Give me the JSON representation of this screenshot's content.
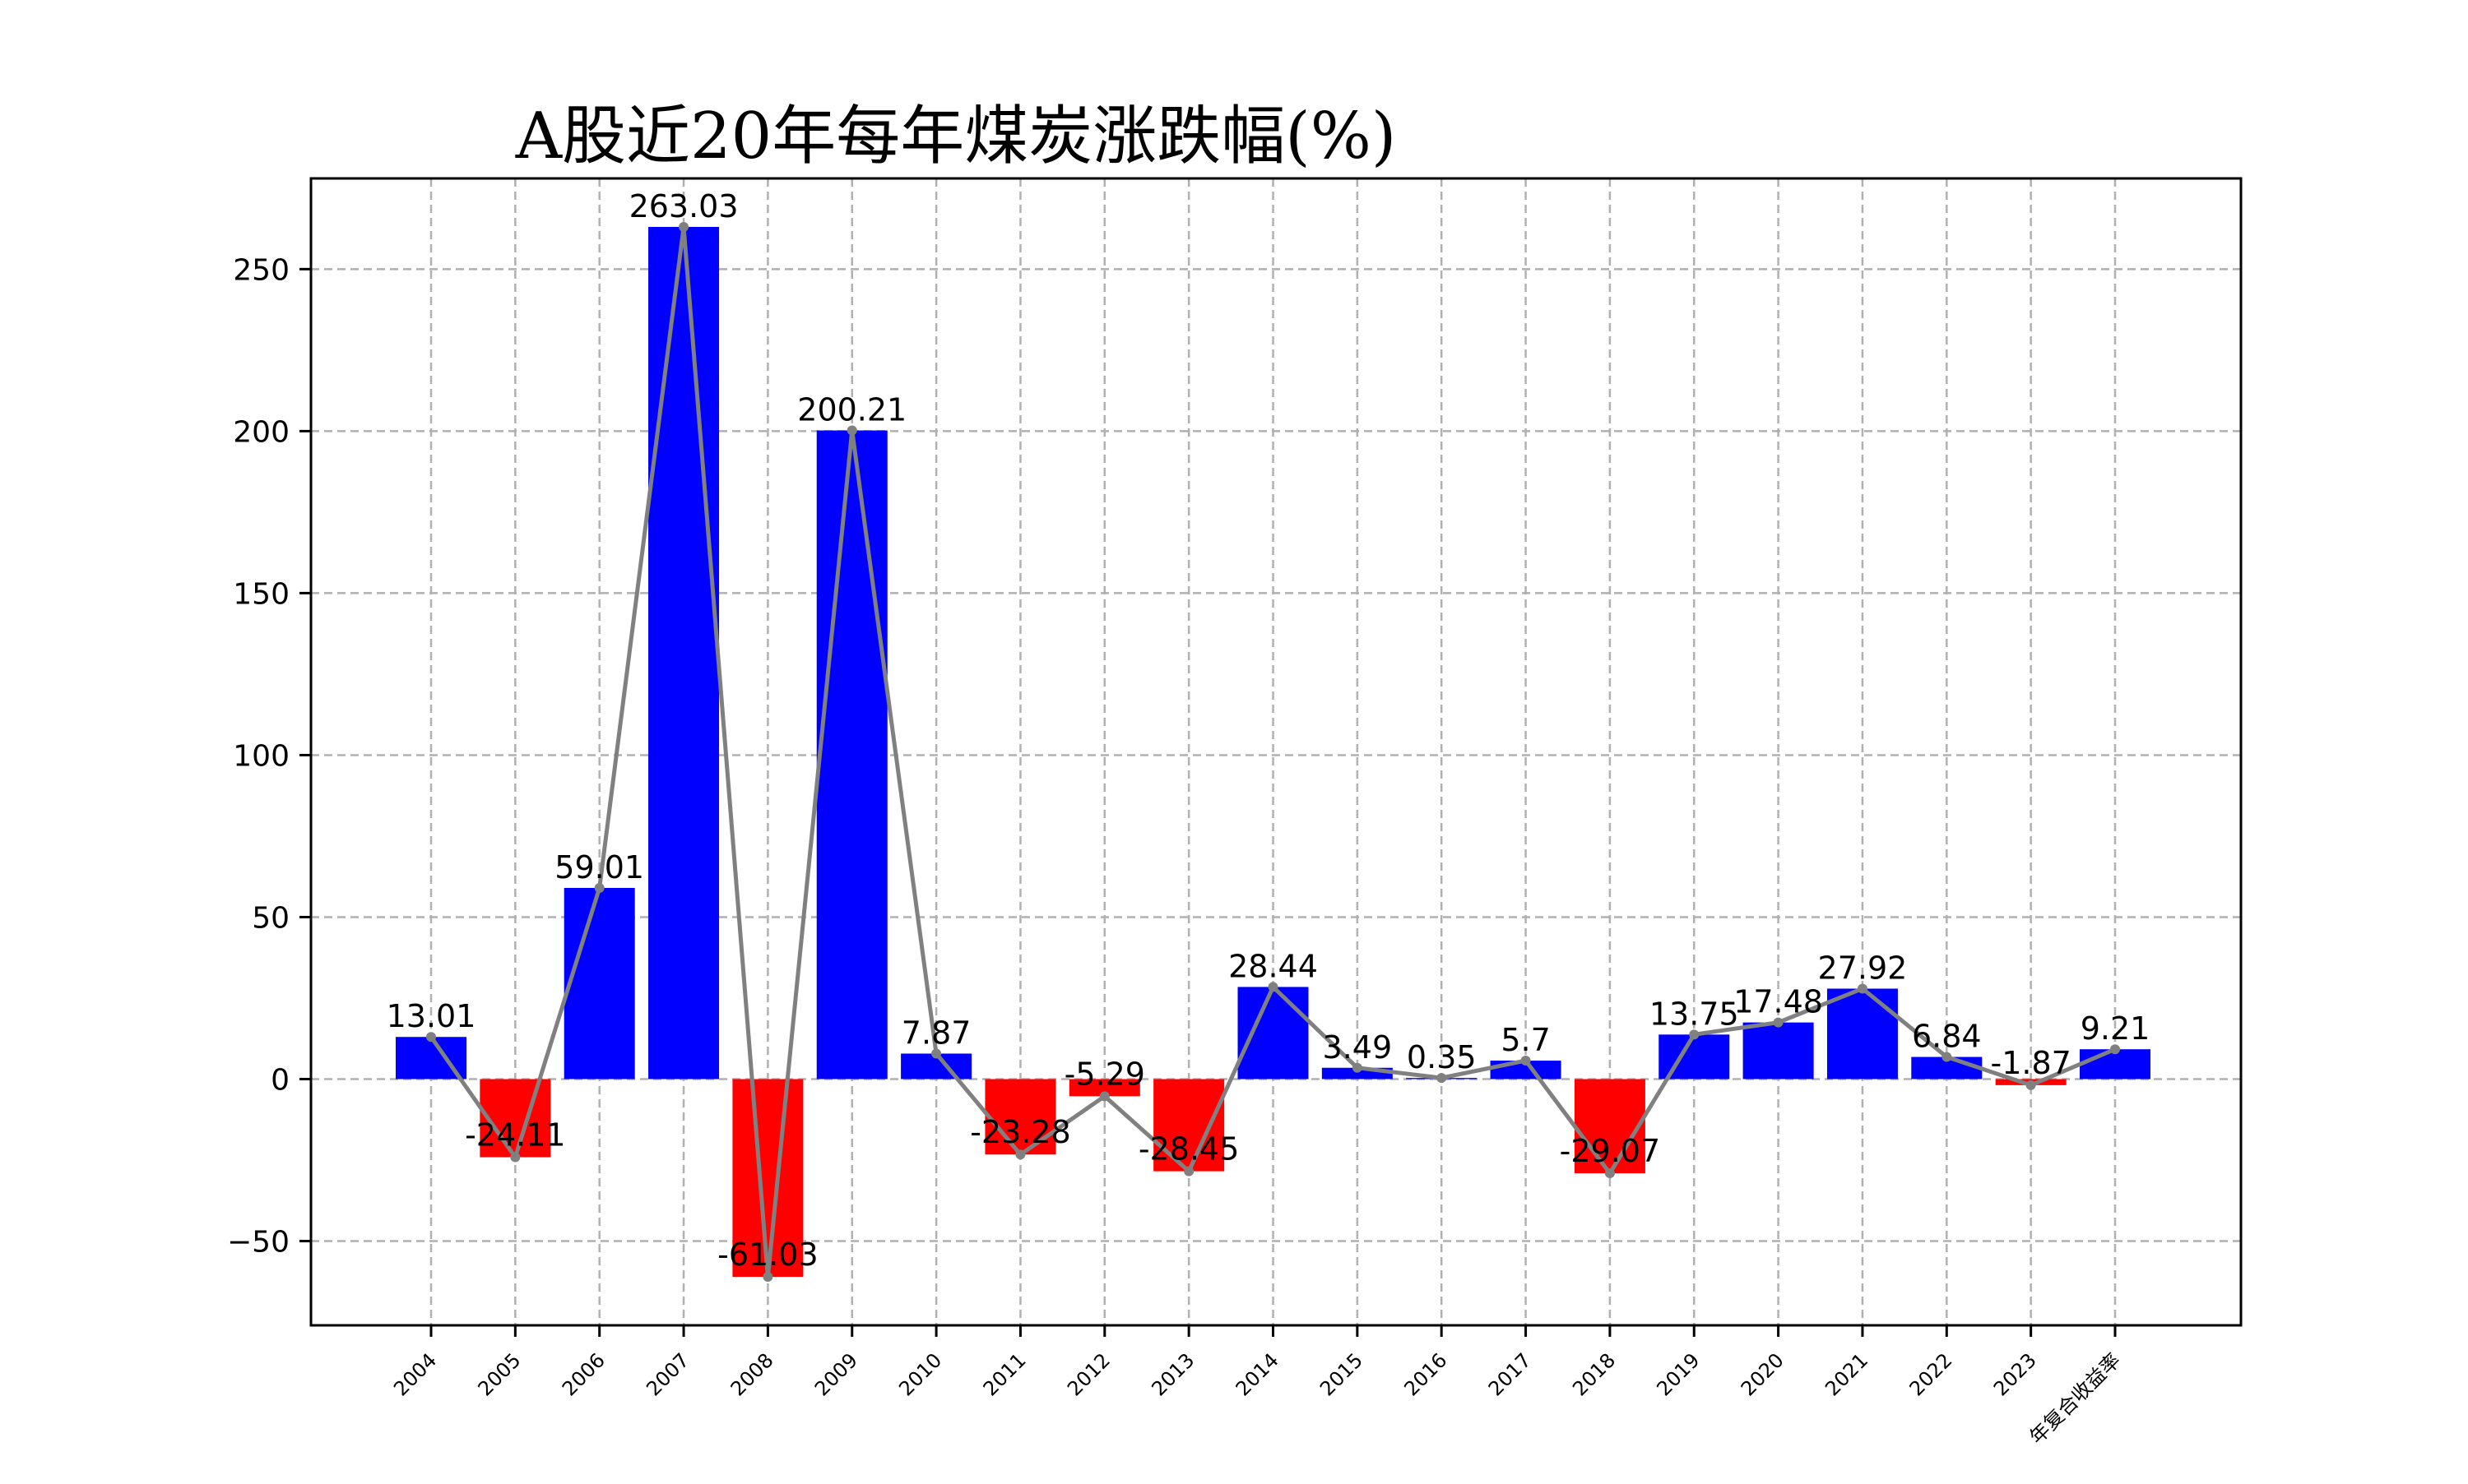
{
  "chart_data": {
    "type": "bar",
    "title": "A股近20年每年煤炭涨跌幅(%)",
    "xlabel": "",
    "ylabel": "",
    "categories": [
      "2004",
      "2005",
      "2006",
      "2007",
      "2008",
      "2009",
      "2010",
      "2011",
      "2012",
      "2013",
      "2014",
      "2015",
      "2016",
      "2017",
      "2018",
      "2019",
      "2020",
      "2021",
      "2022",
      "2023",
      "年复合收益率"
    ],
    "values": [
      13.01,
      -24.11,
      59.01,
      263.03,
      -61.03,
      200.21,
      7.87,
      -23.28,
      -5.29,
      -28.45,
      28.44,
      3.49,
      0.35,
      5.7,
      -29.07,
      13.75,
      17.48,
      27.92,
      6.84,
      -1.87,
      9.21
    ],
    "value_labels": [
      "13.01",
      "-24.11",
      "59.01",
      "263.03",
      "-61.03",
      "200.21",
      "7.87",
      "-23.28",
      "-5.29",
      "-28.45",
      "28.44",
      "3.49",
      "0.35",
      "5.7",
      "-29.07",
      "13.75",
      "17.48",
      "27.92",
      "6.84",
      "-1.87",
      "9.21"
    ],
    "ylim": [
      -76,
      278
    ],
    "yticks": [
      -50,
      0,
      50,
      100,
      150,
      200,
      250
    ],
    "ytick_labels": [
      "−50",
      "0",
      "50",
      "100",
      "150",
      "200",
      "250"
    ],
    "grid": true,
    "overlay_line": true,
    "colors": {
      "positive": "#0000ff",
      "negative": "#ff0000",
      "line": "#808080",
      "grid": "#b0b0b0"
    }
  }
}
